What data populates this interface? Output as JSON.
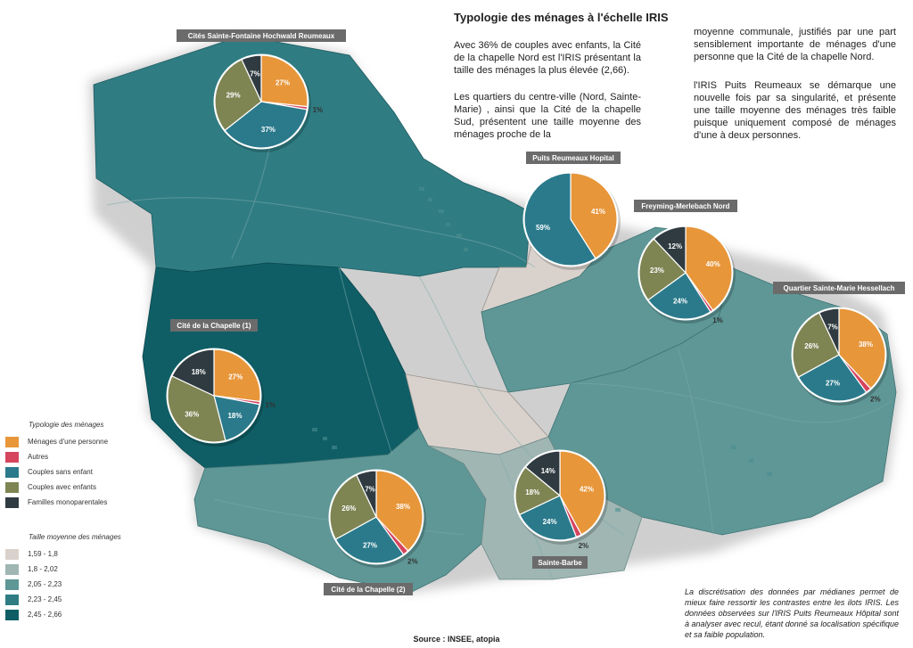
{
  "title": "Typologie des ménages à l'échelle IRIS",
  "paragraphs": {
    "p1": "Avec 36% de couples avec enfants, la Cité de la chapelle Nord est l'IRIS présentant la taille des ménages la plus élevée (2,66).",
    "p2": "Les quartiers du centre-ville (Nord, Sainte-Marie) , ainsi que la Cité de la chapelle Sud, présentent une taille moyenne des ménages proche de la",
    "p3": "moyenne communale, justifiés par une part sensiblement importante de ménages d'une personne que la Cité de la chapelle Nord.",
    "p4": "l'IRIS Puits Reumeaux se démarque une nouvelle fois par sa singularité, et présente une taille moyenne des ménages très faible puisque uniquement composé de ménages d'une à deux personnes."
  },
  "note": "La discrétisation des données par médianes permet de mieux faire ressortir les contrastes entre les ilots IRIS. Les données observées sur l'IRIS Puits Reumeaux Hôpital sont à analyser avec recul, étant donné sa localisation spécifique et sa faible population.",
  "source": "Source : INSEE, atopia",
  "legend": {
    "typologie_title": "Typologie des ménages",
    "typologie": [
      {
        "label": "Ménages d'une personne",
        "color": "#E8963A"
      },
      {
        "label": "Autres",
        "color": "#D6455E"
      },
      {
        "label": "Couples sans enfant",
        "color": "#2B7A8C"
      },
      {
        "label": "Couples avec enfants",
        "color": "#7E8553"
      },
      {
        "label": "Familles monoparentales",
        "color": "#2F3B40"
      }
    ],
    "taille_title": "Taille moyenne des ménages",
    "taille": [
      {
        "label": "1,59 - 1,8",
        "color": "#D9D2CC"
      },
      {
        "label": "1,8 - 2,02",
        "color": "#9FB6B3"
      },
      {
        "label": "2,05 - 2,23",
        "color": "#5E9796"
      },
      {
        "label": "2,23 - 2,45",
        "color": "#2F7D83"
      },
      {
        "label": "2,45 - 2,66",
        "color": "#0F5E66"
      }
    ]
  },
  "pies": [
    {
      "name": "Cités Sainte-Fontaine Hochwald Reumeaux",
      "slices": [
        {
          "category": "Ménages d'une personne",
          "value": 27,
          "label": "27%"
        },
        {
          "category": "Autres",
          "value": 1,
          "label": "1%"
        },
        {
          "category": "Couples sans enfant",
          "value": 37,
          "label": "37%"
        },
        {
          "category": "Couples avec enfants",
          "value": 29,
          "label": "29%"
        },
        {
          "category": "Familles monoparentales",
          "value": 7,
          "label": "7%"
        }
      ]
    },
    {
      "name": "Puits Reumeaux Hopital",
      "slices": [
        {
          "category": "Ménages d'une personne",
          "value": 41,
          "label": "41%"
        },
        {
          "category": "Couples sans enfant",
          "value": 59,
          "label": "59%"
        }
      ]
    },
    {
      "name": "Freyming-Merlebach Nord",
      "slices": [
        {
          "category": "Ménages d'une personne",
          "value": 40,
          "label": "40%"
        },
        {
          "category": "Autres",
          "value": 1,
          "label": "1%"
        },
        {
          "category": "Couples sans enfant",
          "value": 24,
          "label": "24%"
        },
        {
          "category": "Couples avec enfants",
          "value": 23,
          "label": "23%"
        },
        {
          "category": "Familles monoparentales",
          "value": 12,
          "label": "12%"
        }
      ]
    },
    {
      "name": "Quartier Sainte-Marie Hessellach",
      "slices": [
        {
          "category": "Ménages d'une personne",
          "value": 38,
          "label": "38%"
        },
        {
          "category": "Autres",
          "value": 2,
          "label": "2%"
        },
        {
          "category": "Couples sans enfant",
          "value": 27,
          "label": "27%"
        },
        {
          "category": "Couples avec enfants",
          "value": 26,
          "label": "26%"
        },
        {
          "category": "Familles monoparentales",
          "value": 7,
          "label": "7%"
        }
      ]
    },
    {
      "name": "Cité de la Chapelle (1)",
      "slices": [
        {
          "category": "Ménages d'une personne",
          "value": 27,
          "label": "27%"
        },
        {
          "category": "Autres",
          "value": 1,
          "label": "1%"
        },
        {
          "category": "Couples sans enfant",
          "value": 18,
          "label": "18%"
        },
        {
          "category": "Couples avec enfants",
          "value": 36,
          "label": "36%"
        },
        {
          "category": "Familles monoparentales",
          "value": 18,
          "label": "18%"
        }
      ]
    },
    {
      "name": "Cité de la Chapelle (2)",
      "slices": [
        {
          "category": "Ménages d'une personne",
          "value": 38,
          "label": "38%"
        },
        {
          "category": "Autres",
          "value": 2,
          "label": "2%"
        },
        {
          "category": "Couples sans enfant",
          "value": 27,
          "label": "27%"
        },
        {
          "category": "Couples avec enfants",
          "value": 26,
          "label": "26%"
        },
        {
          "category": "Familles monoparentales",
          "value": 7,
          "label": "7%"
        }
      ]
    },
    {
      "name": "Sainte-Barbe",
      "slices": [
        {
          "category": "Ménages d'une personne",
          "value": 42,
          "label": "42%"
        },
        {
          "category": "Autres",
          "value": 2,
          "label": "2%"
        },
        {
          "category": "Couples sans enfant",
          "value": 24,
          "label": "24%"
        },
        {
          "category": "Couples avec enfants",
          "value": 18,
          "label": "18%"
        },
        {
          "category": "Familles monoparentales",
          "value": 14,
          "label": "14%"
        }
      ]
    }
  ]
}
